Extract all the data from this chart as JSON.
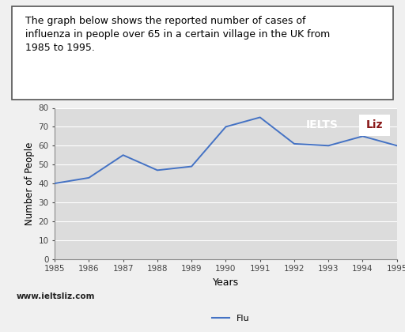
{
  "title_text": "The graph below shows the reported number of cases of\ninfluenza in people over 65 in a certain village in the UK from\n1985 to 1995.",
  "years": [
    1985,
    1986,
    1987,
    1988,
    1989,
    1990,
    1991,
    1992,
    1993,
    1994,
    1995
  ],
  "values": [
    40,
    43,
    55,
    47,
    49,
    70,
    75,
    61,
    60,
    65,
    60
  ],
  "line_color": "#4472C4",
  "ylabel": "Number of People",
  "xlabel": "Years",
  "ylim": [
    0,
    80
  ],
  "yticks": [
    0,
    10,
    20,
    30,
    40,
    50,
    60,
    70,
    80
  ],
  "background_color": "#f0f0f0",
  "plot_bg_color": "#dcdcdc",
  "grid_color": "#ffffff",
  "watermark_text": "www.ieltsliz.com",
  "legend_label": "Flu",
  "ielts_bg": "#8B1A1A",
  "title_fontsize": 9.0,
  "tick_fontsize": 7.5,
  "ylabel_fontsize": 8.5,
  "xlabel_fontsize": 9.0
}
